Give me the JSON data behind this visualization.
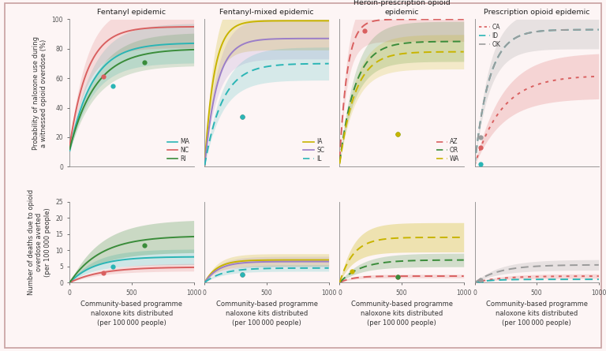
{
  "background_color": "#fdf5f5",
  "border_color": "#c8a0a0",
  "col_titles": [
    "Fentanyl epidemic",
    "Fentanyl-mixed epidemic",
    "Heroin-prescription opioid\nepidemic",
    "Prescription opioid epidemic"
  ],
  "row0_ylabel": "Probability of naloxone use during\na witnessed opioid overdose (%)",
  "row1_ylabel": "Number of deaths due to opioid\noverdose averted\n(per 100 000 people)",
  "xlabel": "Community-based programme\nnaloxone kits distributed\n(per 100 000 people)",
  "xlim": [
    0,
    1000
  ],
  "row0_ylim": [
    0,
    100
  ],
  "row1_ylim": [
    0,
    25
  ],
  "xticks": [
    0,
    500,
    1000
  ],
  "row0_yticks": [
    0,
    20,
    40,
    60,
    80,
    100
  ],
  "row1_yticks": [
    0,
    5,
    10,
    15,
    20,
    25
  ],
  "panels": [
    {
      "col": 0,
      "row": 0,
      "lines": [
        {
          "label": "MA",
          "color": "#2ab5b5",
          "lw": 1.4,
          "ls": "solid",
          "y0": 11,
          "ymax": 84,
          "k": 0.0055,
          "band_color": "#2ab5b5",
          "band_alpha": 0.18,
          "band_spread": 0.32,
          "dot_x": 350,
          "dot_y": 55
        },
        {
          "label": "NC",
          "color": "#d96060",
          "lw": 1.4,
          "ls": "solid",
          "y0": 14,
          "ymax": 95,
          "k": 0.007,
          "band_color": "#d96060",
          "band_alpha": 0.18,
          "band_spread": 0.3,
          "dot_x": 270,
          "dot_y": 61
        },
        {
          "label": "RI",
          "color": "#3a8c3a",
          "lw": 1.4,
          "ls": "solid",
          "y0": 12,
          "ymax": 80,
          "k": 0.0048,
          "band_color": "#3a8c3a",
          "band_alpha": 0.18,
          "band_spread": 0.28,
          "dot_x": 600,
          "dot_y": 71
        }
      ],
      "legend_labels": [
        "MA",
        "NC",
        "RI"
      ],
      "legend_colors": [
        "#2ab5b5",
        "#d96060",
        "#3a8c3a"
      ],
      "legend_ls": [
        "solid",
        "solid",
        "solid"
      ],
      "legend_loc": "lower right"
    },
    {
      "col": 1,
      "row": 0,
      "lines": [
        {
          "label": "IA",
          "color": "#c8b400",
          "lw": 1.4,
          "ls": "solid",
          "y0": 1,
          "ymax": 99,
          "k": 0.013,
          "band_color": "#c8b400",
          "band_alpha": 0.22,
          "band_spread": 0.4,
          "dot_x": 300,
          "dot_y": 34
        },
        {
          "label": "SC",
          "color": "#9b7ec8",
          "lw": 1.4,
          "ls": "solid",
          "y0": 1,
          "ymax": 87,
          "k": 0.01,
          "band_color": "#9b7ec8",
          "band_alpha": 0.18,
          "band_spread": 0.32,
          "dot_x": 300,
          "dot_y": 34
        },
        {
          "label": "IL",
          "color": "#2ab5b5",
          "lw": 1.4,
          "ls": "dashed",
          "y0": 1,
          "ymax": 70,
          "k": 0.007,
          "band_color": "#2ab5b5",
          "band_alpha": 0.18,
          "band_spread": 0.32,
          "dot_x": 300,
          "dot_y": 34
        }
      ],
      "legend_labels": [
        "IA",
        "SC",
        "IL"
      ],
      "legend_colors": [
        "#c8b400",
        "#9b7ec8",
        "#2ab5b5"
      ],
      "legend_ls": [
        "solid",
        "solid",
        "dashed"
      ],
      "legend_loc": "lower right"
    },
    {
      "col": 2,
      "row": 0,
      "lines": [
        {
          "label": "AZ",
          "color": "#d96060",
          "lw": 1.4,
          "ls": "dashed",
          "y0": 5,
          "ymax": 100,
          "k": 0.016,
          "band_color": "#d96060",
          "band_alpha": 0.18,
          "band_spread": 0.3,
          "dot_x": 200,
          "dot_y": 92
        },
        {
          "label": "OR",
          "color": "#3a8c3a",
          "lw": 1.4,
          "ls": "dashed",
          "y0": 3,
          "ymax": 85,
          "k": 0.008,
          "band_color": "#3a8c3a",
          "band_alpha": 0.2,
          "band_spread": 0.32,
          "dot_x": 470,
          "dot_y": 22
        },
        {
          "label": "WA",
          "color": "#c8b400",
          "lw": 1.4,
          "ls": "dashed",
          "y0": 2,
          "ymax": 78,
          "k": 0.008,
          "band_color": "#c8b400",
          "band_alpha": 0.18,
          "band_spread": 0.3,
          "dot_x": 470,
          "dot_y": 22
        }
      ],
      "legend_labels": [
        "AZ",
        "OR",
        "WA"
      ],
      "legend_colors": [
        "#d96060",
        "#3a8c3a",
        "#c8b400"
      ],
      "legend_ls": [
        "dashed",
        "dashed",
        "dashed"
      ],
      "legend_loc": "lower right"
    },
    {
      "col": 3,
      "row": 0,
      "lines": [
        {
          "label": "CA",
          "color": "#d96060",
          "lw": 1.4,
          "ls": "dotted",
          "y0": 1,
          "ymax": 62,
          "k": 0.0045,
          "band_color": "#d96060",
          "band_alpha": 0.22,
          "band_spread": 0.5,
          "dot_x": 50,
          "dot_y": 13
        },
        {
          "label": "ID",
          "color": "#2ab5b5",
          "lw": 1.4,
          "ls": "dashed",
          "y0": 1,
          "ymax": 93,
          "k": 0.0085,
          "band_color": "#9b9b9b",
          "band_alpha": 0.22,
          "band_spread": 0.28,
          "dot_x": 50,
          "dot_y": 2
        },
        {
          "label": "OK",
          "color": "#9b9b9b",
          "lw": 1.4,
          "ls": "dashed",
          "y0": 1,
          "ymax": 93,
          "k": 0.0085,
          "band_color": "#9b9b9b",
          "band_alpha": 0.0,
          "band_spread": 0.28,
          "dot_x": 50,
          "dot_y": 20
        }
      ],
      "legend_labels": [
        "CA",
        "ID",
        "OK"
      ],
      "legend_colors": [
        "#d96060",
        "#2ab5b5",
        "#9b9b9b"
      ],
      "legend_ls": [
        "dotted",
        "dashed",
        "dashed"
      ],
      "legend_loc": "upper left"
    },
    {
      "col": 0,
      "row": 1,
      "lines": [
        {
          "label": "MA",
          "color": "#2ab5b5",
          "lw": 1.4,
          "ls": "solid",
          "y0": 0,
          "ymax": 8.0,
          "k": 0.005,
          "band_color": "#2ab5b5",
          "band_alpha": 0.22,
          "band_spread": 0.6,
          "dot_x": 350,
          "dot_y": 5.0
        },
        {
          "label": "NC",
          "color": "#d96060",
          "lw": 1.4,
          "ls": "solid",
          "y0": 0,
          "ymax": 4.8,
          "k": 0.004,
          "band_color": "#d96060",
          "band_alpha": 0.18,
          "band_spread": 0.5,
          "dot_x": 270,
          "dot_y": 3.1
        },
        {
          "label": "RI",
          "color": "#3a8c3a",
          "lw": 1.4,
          "ls": "solid",
          "y0": 0,
          "ymax": 14.5,
          "k": 0.004,
          "band_color": "#3a8c3a",
          "band_alpha": 0.26,
          "band_spread": 0.7,
          "dot_x": 600,
          "dot_y": 11.5
        }
      ]
    },
    {
      "col": 1,
      "row": 1,
      "lines": [
        {
          "label": "IA",
          "color": "#c8b400",
          "lw": 1.4,
          "ls": "solid",
          "y0": 0,
          "ymax": 7.0,
          "k": 0.01,
          "band_color": "#c8b400",
          "band_alpha": 0.22,
          "band_spread": 0.55,
          "dot_x": 300,
          "dot_y": 2.5
        },
        {
          "label": "SC",
          "color": "#9b7ec8",
          "lw": 1.4,
          "ls": "solid",
          "y0": 0,
          "ymax": 6.5,
          "k": 0.009,
          "band_color": "#9b7ec8",
          "band_alpha": 0.18,
          "band_spread": 0.5,
          "dot_x": 300,
          "dot_y": 2.5
        },
        {
          "label": "IL",
          "color": "#2ab5b5",
          "lw": 1.4,
          "ls": "dashed",
          "y0": 0,
          "ymax": 4.5,
          "k": 0.007,
          "band_color": "#2ab5b5",
          "band_alpha": 0.18,
          "band_spread": 0.45,
          "dot_x": 300,
          "dot_y": 2.5
        }
      ]
    },
    {
      "col": 2,
      "row": 1,
      "lines": [
        {
          "label": "AZ",
          "color": "#d96060",
          "lw": 1.4,
          "ls": "dashed",
          "y0": 0,
          "ymax": 2.0,
          "k": 0.01,
          "band_color": "#d96060",
          "band_alpha": 0.18,
          "band_spread": 0.55,
          "dot_x": 470,
          "dot_y": 1.8
        },
        {
          "label": "OR",
          "color": "#3a8c3a",
          "lw": 1.4,
          "ls": "dashed",
          "y0": 0,
          "ymax": 7.0,
          "k": 0.006,
          "band_color": "#3a8c3a",
          "band_alpha": 0.22,
          "band_spread": 0.6,
          "dot_x": 470,
          "dot_y": 1.8
        },
        {
          "label": "WA",
          "color": "#c8b400",
          "lw": 1.4,
          "ls": "dashed",
          "y0": 0,
          "ymax": 14.0,
          "k": 0.009,
          "band_color": "#c8b400",
          "band_alpha": 0.28,
          "band_spread": 0.65,
          "dot_x": 100,
          "dot_y": 3.5
        }
      ]
    },
    {
      "col": 3,
      "row": 1,
      "lines": [
        {
          "label": "CA",
          "color": "#d96060",
          "lw": 1.4,
          "ls": "dotted",
          "y0": 0,
          "ymax": 2.0,
          "k": 0.005,
          "band_color": "#d96060",
          "band_alpha": 0.2,
          "band_spread": 0.7,
          "dot_x": 50,
          "dot_y": 0.5
        },
        {
          "label": "ID",
          "color": "#2ab5b5",
          "lw": 1.4,
          "ls": "dashed",
          "y0": 0,
          "ymax": 1.0,
          "k": 0.008,
          "band_color": "#9b9b9b",
          "band_alpha": 0.0,
          "band_spread": 0.5,
          "dot_x": 50,
          "dot_y": 0.3
        },
        {
          "label": "OK",
          "color": "#9b9b9b",
          "lw": 1.4,
          "ls": "dashed",
          "y0": 0,
          "ymax": 5.5,
          "k": 0.005,
          "band_color": "#9b9b9b",
          "band_alpha": 0.22,
          "band_spread": 0.6,
          "dot_x": 50,
          "dot_y": 0.7
        }
      ]
    }
  ]
}
